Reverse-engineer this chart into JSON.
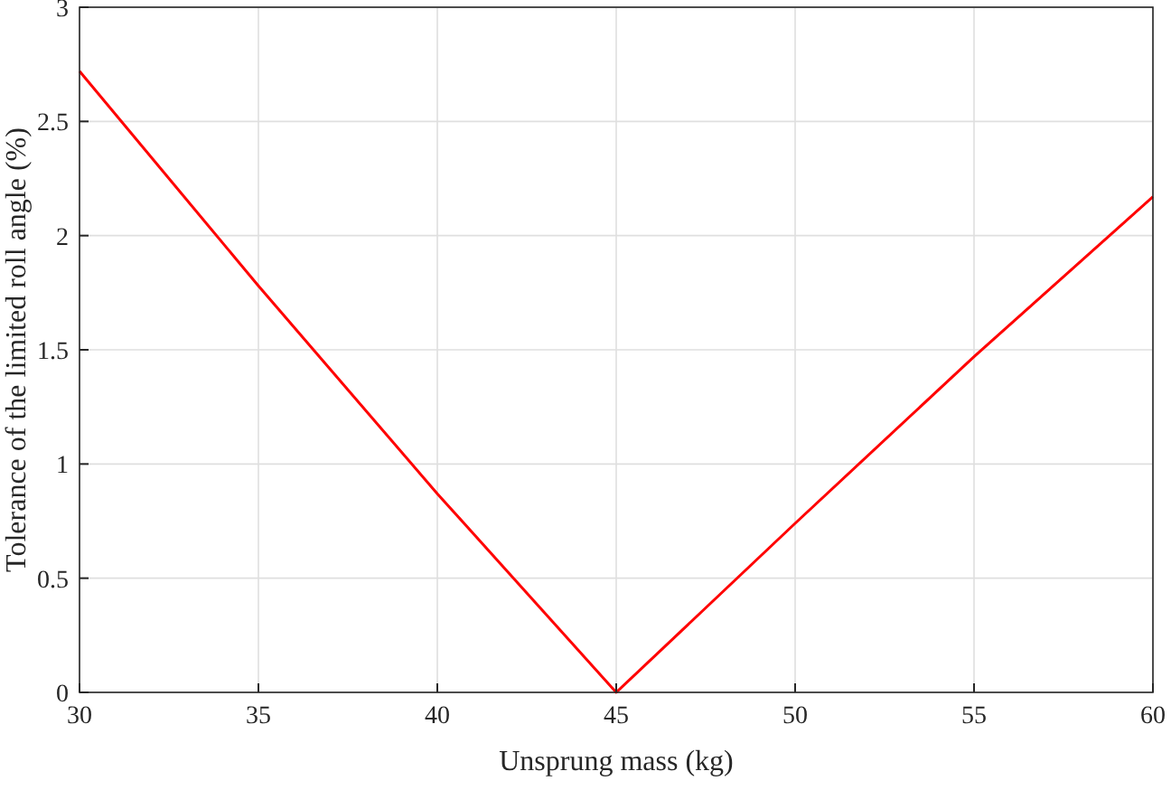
{
  "chart_data": {
    "type": "line",
    "xlabel": "Unsprung mass (kg)",
    "ylabel": "Tolerance of the limited roll angle (%)",
    "x": [
      30,
      35,
      40,
      45,
      50,
      55,
      60
    ],
    "series": [
      {
        "color": "#ff0000",
        "values": [
          2.72,
          1.78,
          0.87,
          0,
          0.74,
          1.47,
          2.17
        ]
      }
    ],
    "xlim": [
      30,
      60
    ],
    "xticks": [
      30,
      35,
      40,
      45,
      50,
      55,
      60
    ],
    "ylim": [
      0,
      3
    ],
    "yticks": [
      0,
      0.5,
      1,
      1.5,
      2,
      2.5,
      3
    ],
    "grid": true,
    "line_style": "solid",
    "marker": "none"
  }
}
